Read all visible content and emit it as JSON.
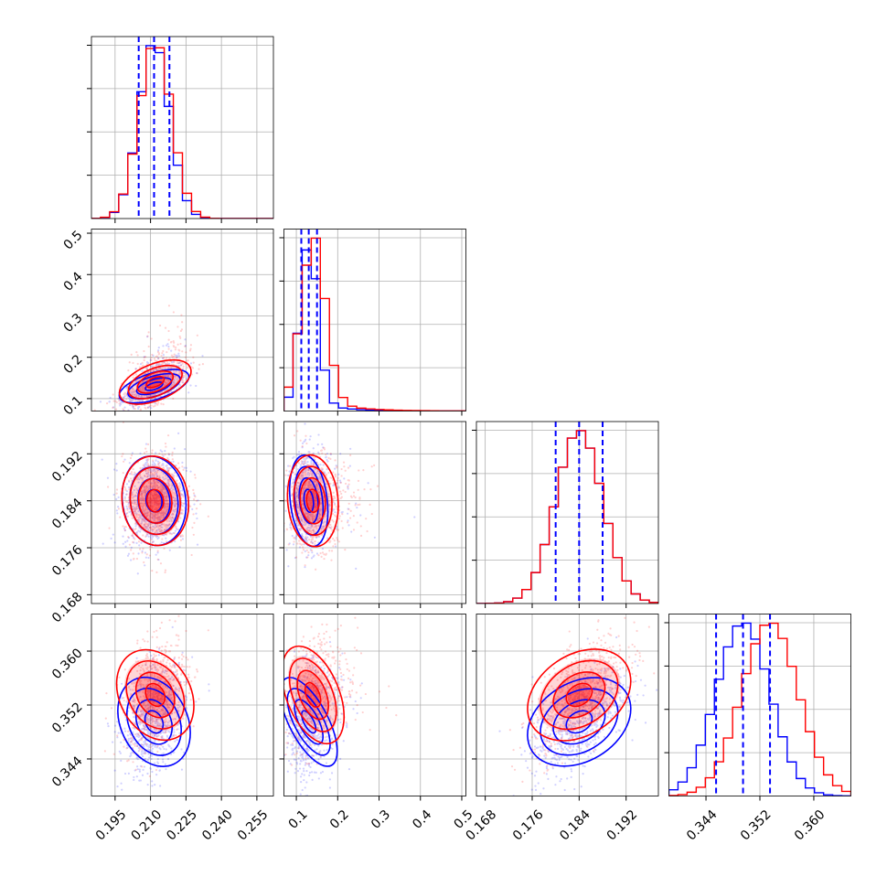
{
  "chart_data": {
    "type": "corner",
    "title": "",
    "parameters": [
      {
        "range": [
          0.185,
          0.262
        ],
        "ticks": [
          0.195,
          0.21,
          0.225,
          0.24,
          0.255
        ],
        "tick_labels": [
          "0.195",
          "0.210",
          "0.225",
          "0.240",
          "0.255"
        ]
      },
      {
        "range": [
          0.07,
          0.51
        ],
        "ticks": [
          0.1,
          0.2,
          0.3,
          0.4,
          0.5
        ],
        "tick_labels": [
          "0.1",
          "0.2",
          "0.3",
          "0.4",
          "0.5"
        ]
      },
      {
        "range": [
          0.1665,
          0.1975
        ],
        "ticks": [
          0.168,
          0.176,
          0.184,
          0.192
        ],
        "tick_labels": [
          "0.168",
          "0.176",
          "0.184",
          "0.192"
        ]
      },
      {
        "range": [
          0.3385,
          0.3655
        ],
        "ticks": [
          0.344,
          0.352,
          0.36
        ],
        "tick_labels": [
          "0.344",
          "0.352",
          "0.360"
        ]
      }
    ],
    "grid": true,
    "series": [
      {
        "color": "#0000ff",
        "means": [
          0.2115,
          0.13,
          0.184,
          0.3495
        ],
        "sigmas": [
          0.0065,
          0.022,
          0.004,
          0.004
        ],
        "corr": {
          "1-0": 0.6,
          "2-0": 0.1,
          "2-1": 0.05,
          "3-0": 0.3,
          "3-1": 0.2,
          "3-2": 0.6
        }
      },
      {
        "color": "#ff0000",
        "means": [
          0.212,
          0.14,
          0.184,
          0.3535
        ],
        "sigmas": [
          0.0068,
          0.03,
          0.004,
          0.0042
        ],
        "corr": {
          "1-0": 0.6,
          "2-0": 0.1,
          "2-1": 0.05,
          "3-0": 0.35,
          "3-1": 0.2,
          "3-2": 0.65
        }
      }
    ],
    "quantile_lines": {
      "color": "#0000ff",
      "values": [
        [
          0.205,
          0.2115,
          0.218
        ],
        [
          0.112,
          0.13,
          0.15
        ],
        [
          0.18,
          0.184,
          0.188
        ],
        [
          0.3455,
          0.3495,
          0.3535
        ]
      ]
    }
  }
}
